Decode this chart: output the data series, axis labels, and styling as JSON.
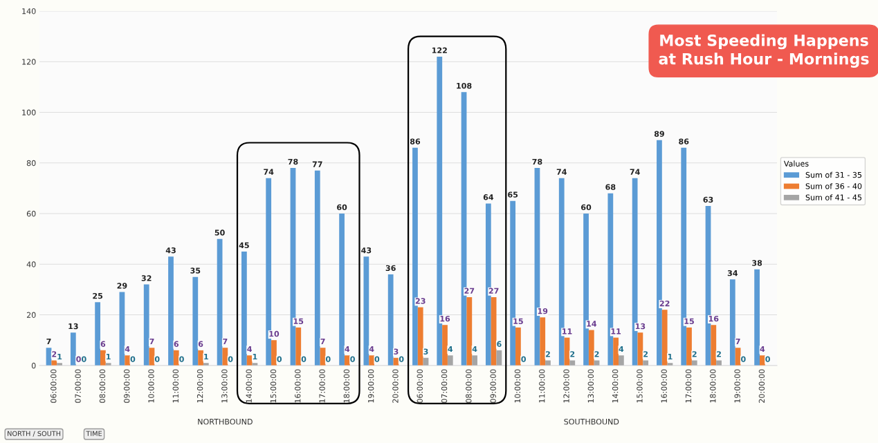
{
  "chart_data": {
    "type": "bar",
    "categories": [
      "06:00:00",
      "07:00:00",
      "08:00:00",
      "09:00:00",
      "10:00:00",
      "11:00:00",
      "12:00:00",
      "13:00:00",
      "14:00:00",
      "15:00:00",
      "16:00:00",
      "17:00:00",
      "18:00:00",
      "19:00:00",
      "20:00:00",
      "06:00:00",
      "07:00:00",
      "08:00:00",
      "09:00:00",
      "10:00:00",
      "11:00:00",
      "12:00:00",
      "13:00:00",
      "14:00:00",
      "15:00:00",
      "16:00:00",
      "17:00:00",
      "18:00:00",
      "19:00:00",
      "20:00:00"
    ],
    "series": [
      {
        "name": "Sum of 31 - 35",
        "color": "#5b9bd5",
        "values": [
          7,
          13,
          25,
          29,
          32,
          43,
          35,
          50,
          45,
          74,
          78,
          77,
          60,
          43,
          36,
          86,
          122,
          108,
          64,
          65,
          78,
          74,
          60,
          68,
          74,
          89,
          86,
          63,
          34,
          38
        ]
      },
      {
        "name": "Sum of 36 - 40",
        "color": "#ed7d31",
        "values": [
          2,
          0,
          6,
          4,
          7,
          6,
          6,
          7,
          4,
          10,
          15,
          7,
          4,
          4,
          3,
          23,
          16,
          27,
          27,
          15,
          19,
          11,
          14,
          11,
          13,
          22,
          15,
          16,
          7,
          4
        ]
      },
      {
        "name": "Sum of 41 - 45",
        "color": "#a5a5a5",
        "values": [
          1,
          0,
          1,
          0,
          0,
          0,
          1,
          0,
          1,
          0,
          0,
          0,
          0,
          0,
          0,
          3,
          4,
          4,
          6,
          0,
          2,
          2,
          2,
          4,
          2,
          1,
          2,
          2,
          0,
          0
        ]
      }
    ],
    "ylim": [
      0,
      140
    ],
    "yticks": [
      0,
      20,
      40,
      60,
      80,
      100,
      120,
      140
    ],
    "grid": "y",
    "legend": "right",
    "legend_title": "Values",
    "data_labels": true,
    "annotations": [
      "NORTHBOUND",
      "SOUTHBOUND",
      "Most Speeding Happens at Rush Hour - Mornings",
      "NORTH / SOUTH",
      "TIME"
    ]
  }
}
